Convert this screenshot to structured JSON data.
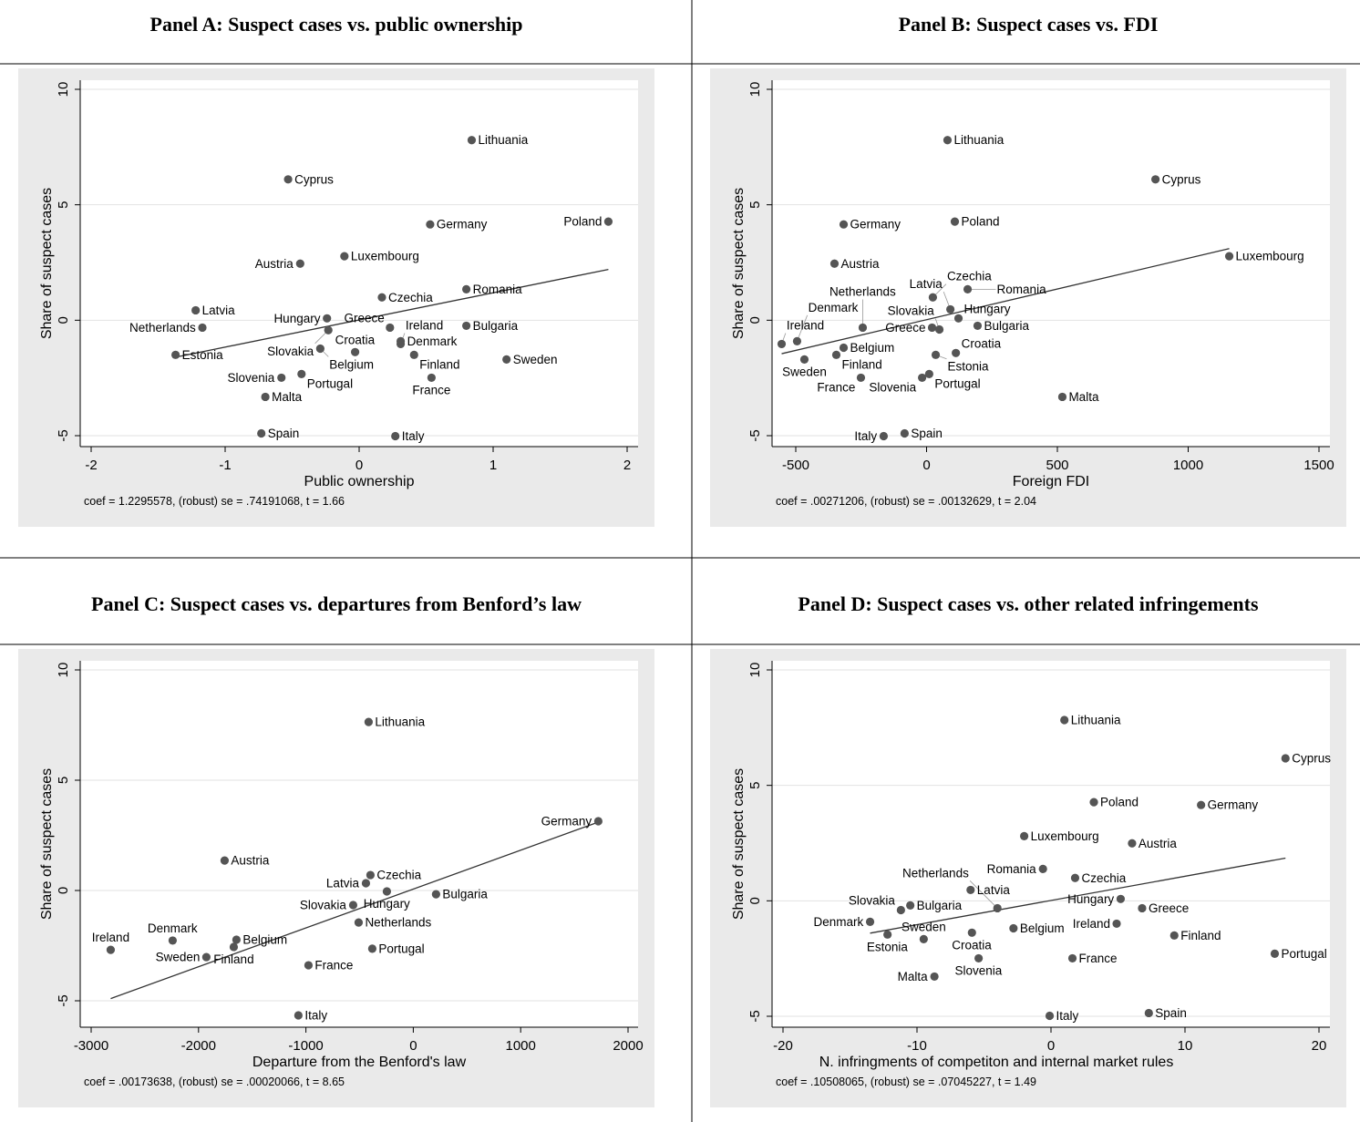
{
  "chart_data": [
    {
      "type": "scatter",
      "title": "Panel A: Suspect cases vs. public ownership",
      "xlabel": "Public ownership",
      "ylabel": "Share of suspect cases",
      "xlim": [
        -2,
        2
      ],
      "ylim": [
        -5,
        10
      ],
      "xticks": [
        -2,
        -1,
        0,
        1,
        2
      ],
      "yticks": [
        -5,
        0,
        5,
        10
      ],
      "note": "coef = 1.2295578, (robust) se = .74191068, t = 1.66",
      "fit_line": [
        [
          -1.37,
          -1.6
        ],
        [
          1.86,
          2.2
        ]
      ],
      "points": [
        {
          "label": "Lithuania",
          "x": 0.84,
          "y": 7.8
        },
        {
          "label": "Cyprus",
          "x": -0.53,
          "y": 6.1
        },
        {
          "label": "Germany",
          "x": 0.53,
          "y": 4.15
        },
        {
          "label": "Poland",
          "x": 1.86,
          "y": 4.27
        },
        {
          "label": "Luxembourg",
          "x": -0.11,
          "y": 2.77
        },
        {
          "label": "Austria",
          "x": -0.44,
          "y": 2.45
        },
        {
          "label": "Romania",
          "x": 0.8,
          "y": 1.34
        },
        {
          "label": "Czechia",
          "x": 0.17,
          "y": 0.99
        },
        {
          "label": "Latvia",
          "x": -1.22,
          "y": 0.43
        },
        {
          "label": "Hungary",
          "x": -0.24,
          "y": 0.08
        },
        {
          "label": "Slovakia",
          "x": -0.23,
          "y": -0.43
        },
        {
          "label": "Netherlands",
          "x": -1.17,
          "y": -0.32
        },
        {
          "label": "Greece",
          "x": 0.23,
          "y": -0.32
        },
        {
          "label": "Bulgaria",
          "x": 0.8,
          "y": -0.24
        },
        {
          "label": "Denmark",
          "x": 0.31,
          "y": -0.91
        },
        {
          "label": "Ireland",
          "x": 0.31,
          "y": -1.03
        },
        {
          "label": "Belgium",
          "x": -0.29,
          "y": -1.23
        },
        {
          "label": "Croatia",
          "x": -0.03,
          "y": -1.38
        },
        {
          "label": "Finland",
          "x": 0.41,
          "y": -1.5
        },
        {
          "label": "Estonia",
          "x": -1.37,
          "y": -1.5
        },
        {
          "label": "Sweden",
          "x": 1.1,
          "y": -1.7
        },
        {
          "label": "Portugal",
          "x": -0.43,
          "y": -2.33
        },
        {
          "label": "Slovenia",
          "x": -0.58,
          "y": -2.49
        },
        {
          "label": "France",
          "x": 0.54,
          "y": -2.49
        },
        {
          "label": "Malta",
          "x": -0.7,
          "y": -3.32
        },
        {
          "label": "Spain",
          "x": -0.73,
          "y": -4.9
        },
        {
          "label": "Italy",
          "x": 0.27,
          "y": -5.02
        }
      ]
    },
    {
      "type": "scatter",
      "title": "Panel B: Suspect cases vs. FDI",
      "xlabel": "Foreign FDI",
      "ylabel": "Share of suspect cases",
      "xlim": [
        -500,
        1500
      ],
      "ylim": [
        -5,
        10
      ],
      "xticks": [
        -500,
        0,
        500,
        1000,
        1500
      ],
      "yticks": [
        -5,
        0,
        5,
        10
      ],
      "note": "coef = .00271206, (robust) se = .00132629, t = 2.04",
      "fit_line": [
        [
          -554,
          -1.45
        ],
        [
          1157,
          3.1
        ]
      ],
      "points": [
        {
          "label": "Lithuania",
          "x": 80,
          "y": 7.8
        },
        {
          "label": "Cyprus",
          "x": 875,
          "y": 6.1
        },
        {
          "label": "Germany",
          "x": -317,
          "y": 4.15
        },
        {
          "label": "Poland",
          "x": 108,
          "y": 4.27
        },
        {
          "label": "Austria",
          "x": -352,
          "y": 2.45
        },
        {
          "label": "Luxembourg",
          "x": 1157,
          "y": 2.77
        },
        {
          "label": "Romania",
          "x": 157,
          "y": 1.34
        },
        {
          "label": "Czechia",
          "x": 24,
          "y": 0.99
        },
        {
          "label": "Latvia",
          "x": 91,
          "y": 0.47
        },
        {
          "label": "Hungary",
          "x": 122,
          "y": 0.08
        },
        {
          "label": "Netherlands",
          "x": -244,
          "y": -0.32
        },
        {
          "label": "Greece",
          "x": 21,
          "y": -0.32
        },
        {
          "label": "Slovakia",
          "x": 49,
          "y": -0.4
        },
        {
          "label": "Bulgaria",
          "x": 195,
          "y": -0.24
        },
        {
          "label": "Ireland",
          "x": -554,
          "y": -1.03
        },
        {
          "label": "Denmark",
          "x": -495,
          "y": -0.91
        },
        {
          "label": "Belgium",
          "x": -317,
          "y": -1.19
        },
        {
          "label": "Finland",
          "x": -345,
          "y": -1.5
        },
        {
          "label": "Sweden",
          "x": -467,
          "y": -1.7
        },
        {
          "label": "Estonia",
          "x": 35,
          "y": -1.5
        },
        {
          "label": "Croatia",
          "x": 112,
          "y": -1.42
        },
        {
          "label": "France",
          "x": -251,
          "y": -2.49
        },
        {
          "label": "Portugal",
          "x": 10,
          "y": -2.33
        },
        {
          "label": "Slovenia",
          "x": -17,
          "y": -2.49
        },
        {
          "label": "Malta",
          "x": 519,
          "y": -3.32
        },
        {
          "label": "Italy",
          "x": -164,
          "y": -5.02
        },
        {
          "label": "Spain",
          "x": -84,
          "y": -4.9
        }
      ]
    },
    {
      "type": "scatter",
      "title": "Panel C: Suspect cases vs. departures from Benford’s law",
      "xlabel": "Departure from the Benford's law",
      "ylabel": "Share of suspect cases",
      "xlim": [
        -3000,
        2000
      ],
      "ylim": [
        -5,
        10
      ],
      "xticks": [
        -3000,
        -2000,
        -1000,
        0,
        1000,
        2000
      ],
      "yticks": [
        -5,
        0,
        5,
        10
      ],
      "note": "coef = .00173638, (robust) se = .00020066, t = 8.65",
      "fit_line": [
        [
          -2818,
          -4.9
        ],
        [
          1723,
          3.1
        ]
      ],
      "points": [
        {
          "label": "Lithuania",
          "x": -416,
          "y": 7.64
        },
        {
          "label": "Austria",
          "x": -1757,
          "y": 1.36
        },
        {
          "label": "Germany",
          "x": 1723,
          "y": 3.14
        },
        {
          "label": "Czechia",
          "x": -399,
          "y": 0.7
        },
        {
          "label": "Latvia",
          "x": -441,
          "y": 0.33
        },
        {
          "label": "Hungary",
          "x": -246,
          "y": -0.04
        },
        {
          "label": "Bulgaria",
          "x": 212,
          "y": -0.17
        },
        {
          "label": "Slovakia",
          "x": -560,
          "y": -0.66
        },
        {
          "label": "Netherlands",
          "x": -509,
          "y": -1.45
        },
        {
          "label": "Ireland",
          "x": -2818,
          "y": -2.69
        },
        {
          "label": "Denmark",
          "x": -2241,
          "y": -2.27
        },
        {
          "label": "Belgium",
          "x": -1647,
          "y": -2.23
        },
        {
          "label": "Finland",
          "x": -1672,
          "y": -2.56
        },
        {
          "label": "Sweden",
          "x": -1927,
          "y": -3.02
        },
        {
          "label": "Portugal",
          "x": -382,
          "y": -2.64
        },
        {
          "label": "France",
          "x": -976,
          "y": -3.39
        },
        {
          "label": "Italy",
          "x": -1070,
          "y": -5.66
        }
      ]
    },
    {
      "type": "scatter",
      "title": "Panel D: Suspect cases vs. other related infringements",
      "xlabel": "N. infringments of competiton and internal market rules",
      "ylabel": "Share of suspect cases",
      "xlim": [
        -20,
        20
      ],
      "ylim": [
        -5,
        10
      ],
      "xticks": [
        -20,
        -10,
        0,
        10,
        20
      ],
      "yticks": [
        -5,
        0,
        5,
        10
      ],
      "note": "coef = .10508065, (robust) se = .07045227, t = 1.49",
      "fit_line": [
        [
          -13.5,
          -1.4
        ],
        [
          17.5,
          1.85
        ]
      ],
      "points": [
        {
          "label": "Lithuania",
          "x": 1.0,
          "y": 7.83
        },
        {
          "label": "Cyprus",
          "x": 17.5,
          "y": 6.17
        },
        {
          "label": "Poland",
          "x": 3.2,
          "y": 4.27
        },
        {
          "label": "Germany",
          "x": 11.2,
          "y": 4.15
        },
        {
          "label": "Luxembourg",
          "x": -2.0,
          "y": 2.8
        },
        {
          "label": "Austria",
          "x": 6.05,
          "y": 2.49
        },
        {
          "label": "Romania",
          "x": -0.6,
          "y": 1.38
        },
        {
          "label": "Czechia",
          "x": 1.8,
          "y": 0.99
        },
        {
          "label": "Latvia",
          "x": -6.0,
          "y": 0.47
        },
        {
          "label": "Hungary",
          "x": 5.2,
          "y": 0.08
        },
        {
          "label": "Greece",
          "x": 6.8,
          "y": -0.32
        },
        {
          "label": "Bulgaria",
          "x": -10.5,
          "y": -0.2
        },
        {
          "label": "Slovakia",
          "x": -11.2,
          "y": -0.4
        },
        {
          "label": "Netherlands",
          "x": -4.0,
          "y": -0.32
        },
        {
          "label": "Denmark",
          "x": -13.5,
          "y": -0.91
        },
        {
          "label": "Ireland",
          "x": 4.9,
          "y": -0.99
        },
        {
          "label": "Finland",
          "x": 9.2,
          "y": -1.5
        },
        {
          "label": "Estonia",
          "x": -12.2,
          "y": -1.46
        },
        {
          "label": "Sweden",
          "x": -9.5,
          "y": -1.66
        },
        {
          "label": "Croatia",
          "x": -5.9,
          "y": -1.38
        },
        {
          "label": "Belgium",
          "x": -2.8,
          "y": -1.19
        },
        {
          "label": "Slovenia",
          "x": -5.4,
          "y": -2.49
        },
        {
          "label": "France",
          "x": 1.6,
          "y": -2.49
        },
        {
          "label": "Portugal",
          "x": 16.7,
          "y": -2.29
        },
        {
          "label": "Malta",
          "x": -8.7,
          "y": -3.28
        },
        {
          "label": "Italy",
          "x": -0.1,
          "y": -4.98
        },
        {
          "label": "Spain",
          "x": 7.3,
          "y": -4.86
        }
      ]
    }
  ],
  "colors": {
    "marker": "#555555",
    "outer_bg": "#eaeaea",
    "plot_bg": "#ffffff",
    "grid": "#e2e2e2",
    "line": "#333333"
  }
}
